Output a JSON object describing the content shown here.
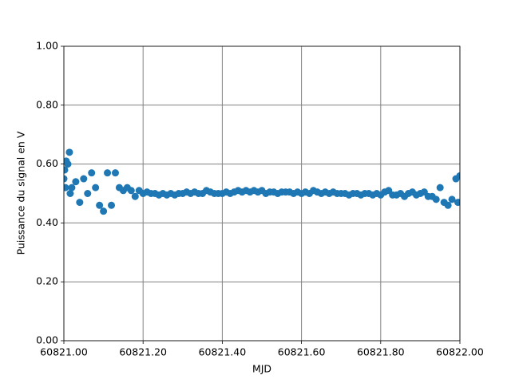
{
  "chart_data": {
    "type": "scatter",
    "xlabel": "MJD",
    "ylabel": "Puissance du signal en V",
    "color": "#1f77b4",
    "grid": true,
    "xlim": [
      60821.0,
      60822.0
    ],
    "xticks": [
      {
        "value": 60821.0,
        "label": "60821.00"
      },
      {
        "value": 60821.2,
        "label": "60821.20"
      },
      {
        "value": 60821.4,
        "label": "60821.40"
      },
      {
        "value": 60821.6,
        "label": "60821.60"
      },
      {
        "value": 60821.8,
        "label": "60821.80"
      },
      {
        "value": 60822.0,
        "label": "60822.00"
      }
    ],
    "ylim": [
      0,
      1
    ],
    "yticks": [
      {
        "value": 0,
        "label": "0.00"
      },
      {
        "value": 0.2,
        "label": "0.20"
      },
      {
        "value": 0.4,
        "label": "0.40"
      },
      {
        "value": 0.6,
        "label": "0.60"
      },
      {
        "value": 0.8,
        "label": "0.80"
      },
      {
        "value": 1,
        "label": "1.00"
      }
    ],
    "x": [
      60821.0,
      60821.002,
      60821.004,
      60821.006,
      60821.01,
      60821.014,
      60821.016,
      60821.02,
      60821.03,
      60821.04,
      60821.05,
      60821.06,
      60821.07,
      60821.08,
      60821.09,
      60821.1,
      60821.11,
      60821.12,
      60821.13,
      60821.14,
      60821.15,
      60821.16,
      60821.17,
      60821.18,
      60821.19,
      60821.2,
      60821.21,
      60821.22,
      60821.23,
      60821.24,
      60821.25,
      60821.26,
      60821.27,
      60821.28,
      60821.29,
      60821.3,
      60821.31,
      60821.32,
      60821.33,
      60821.34,
      60821.35,
      60821.36,
      60821.37,
      60821.38,
      60821.39,
      60821.4,
      60821.41,
      60821.42,
      60821.43,
      60821.44,
      60821.45,
      60821.46,
      60821.47,
      60821.48,
      60821.49,
      60821.5,
      60821.51,
      60821.52,
      60821.53,
      60821.54,
      60821.55,
      60821.56,
      60821.57,
      60821.58,
      60821.59,
      60821.6,
      60821.61,
      60821.62,
      60821.63,
      60821.64,
      60821.65,
      60821.66,
      60821.67,
      60821.68,
      60821.69,
      60821.7,
      60821.71,
      60821.72,
      60821.73,
      60821.74,
      60821.75,
      60821.76,
      60821.77,
      60821.78,
      60821.79,
      60821.8,
      60821.81,
      60821.82,
      60821.83,
      60821.84,
      60821.85,
      60821.86,
      60821.87,
      60821.88,
      60821.89,
      60821.9,
      60821.91,
      60821.92,
      60821.93,
      60821.94,
      60821.95,
      60821.96,
      60821.97,
      60821.98,
      60821.99,
      60821.995,
      60822.0
    ],
    "values": [
      0.55,
      0.58,
      0.52,
      0.61,
      0.6,
      0.64,
      0.5,
      0.52,
      0.54,
      0.47,
      0.55,
      0.5,
      0.57,
      0.52,
      0.46,
      0.44,
      0.57,
      0.46,
      0.57,
      0.52,
      0.51,
      0.52,
      0.51,
      0.49,
      0.51,
      0.5,
      0.505,
      0.5,
      0.5,
      0.495,
      0.5,
      0.495,
      0.5,
      0.495,
      0.5,
      0.5,
      0.505,
      0.5,
      0.505,
      0.5,
      0.5,
      0.51,
      0.505,
      0.5,
      0.5,
      0.5,
      0.505,
      0.5,
      0.505,
      0.51,
      0.505,
      0.51,
      0.505,
      0.51,
      0.505,
      0.51,
      0.5,
      0.505,
      0.505,
      0.5,
      0.505,
      0.505,
      0.505,
      0.5,
      0.505,
      0.5,
      0.505,
      0.5,
      0.51,
      0.505,
      0.5,
      0.505,
      0.5,
      0.505,
      0.5,
      0.5,
      0.5,
      0.495,
      0.5,
      0.5,
      0.495,
      0.5,
      0.5,
      0.495,
      0.5,
      0.495,
      0.505,
      0.51,
      0.495,
      0.495,
      0.5,
      0.49,
      0.5,
      0.505,
      0.495,
      0.5,
      0.505,
      0.49,
      0.49,
      0.48,
      0.52,
      0.47,
      0.46,
      0.48,
      0.55,
      0.47,
      0.56
    ]
  }
}
